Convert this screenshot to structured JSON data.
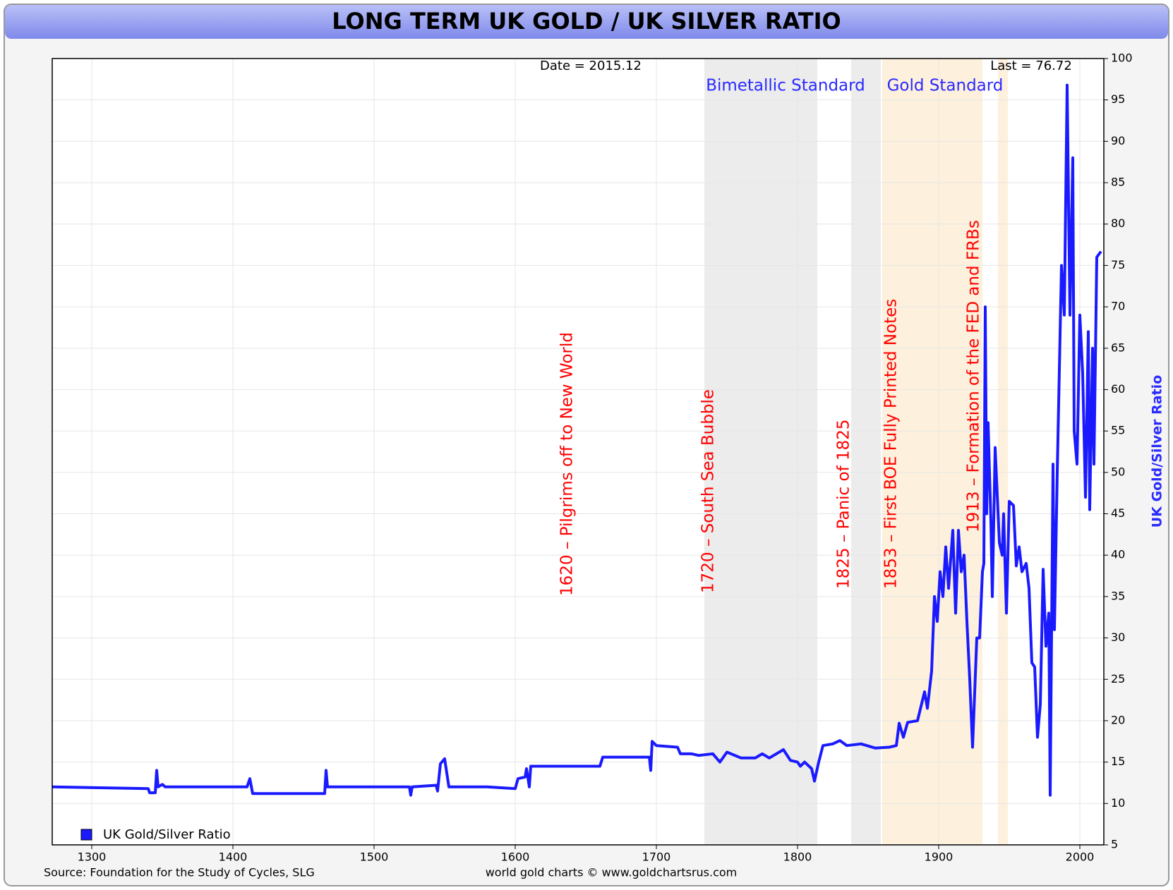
{
  "chart_data": {
    "type": "line",
    "title": "LONG TERM UK GOLD / UK SILVER RATIO",
    "date_label": "Date = 2015.12",
    "last_label": "Last = 76.72",
    "y_axis_label": "UK Gold/Silver Ratio",
    "source": "Source: Foundation for the Study of Cycles, SLG",
    "credit": "world gold charts © www.goldchartsrus.com",
    "band_labels": [
      "Bimetallic Standard",
      "Gold Standard"
    ],
    "bands": [
      {
        "start": 1734,
        "end": 1814,
        "color": "#ececec"
      },
      {
        "start": 1838,
        "end": 1859,
        "color": "#ececec"
      },
      {
        "start": 1860,
        "end": 1931,
        "color": "#fdf0dc"
      },
      {
        "start": 1942,
        "end": 1949,
        "color": "#fdf0dc"
      }
    ],
    "annotations": [
      "1620 – Pilgrims off to New World",
      "1720 – South Sea Bubble",
      "1825 – Panic of 1825",
      "1853 – First BOE Fully Printed Notes",
      "1913 – Formation of the FED and FRBs"
    ],
    "xlim": [
      1272,
      2017
    ],
    "xticks": [
      1300,
      1400,
      1500,
      1600,
      1700,
      1800,
      1900,
      2000
    ],
    "ylim": [
      5,
      100
    ],
    "yticks": [
      5,
      10,
      15,
      20,
      25,
      30,
      35,
      40,
      45,
      50,
      55,
      60,
      65,
      70,
      75,
      80,
      85,
      90,
      95,
      100
    ],
    "grid": true,
    "x": [
      1272,
      1340,
      1341,
      1345,
      1346,
      1347,
      1350,
      1352,
      1410,
      1412,
      1414,
      1465,
      1466,
      1467,
      1525,
      1526,
      1527,
      1544,
      1545,
      1547,
      1550,
      1553,
      1580,
      1600,
      1602,
      1607,
      1608,
      1610,
      1611,
      1660,
      1662,
      1695,
      1696,
      1697,
      1700,
      1715,
      1717,
      1725,
      1730,
      1740,
      1745,
      1750,
      1760,
      1770,
      1775,
      1780,
      1790,
      1795,
      1800,
      1802,
      1805,
      1810,
      1812,
      1815,
      1818,
      1825,
      1830,
      1835,
      1845,
      1855,
      1865,
      1870,
      1872,
      1875,
      1878,
      1885,
      1890,
      1892,
      1895,
      1897,
      1899,
      1901,
      1903,
      1905,
      1907,
      1910,
      1912,
      1914,
      1916,
      1918,
      1920,
      1922,
      1924,
      1927,
      1929,
      1931,
      1932,
      1933,
      1934,
      1935,
      1937,
      1938,
      1940,
      1943,
      1945,
      1946,
      1948,
      1950,
      1953,
      1955,
      1957,
      1959,
      1962,
      1964,
      1966,
      1968,
      1970,
      1972,
      1974,
      1976,
      1978,
      1979,
      1981,
      1982,
      1984,
      1987,
      1989,
      1991,
      1993,
      1995,
      1996,
      1998,
      2000,
      2002,
      2004,
      2006,
      2007,
      2009,
      2010,
      2012,
      2015
    ],
    "series": [
      {
        "name": "UK Gold/Silver Ratio",
        "color": "#1a1aff",
        "values": [
          12,
          11.8,
          11.3,
          11.3,
          14,
          12,
          12.3,
          12,
          12,
          13,
          11.2,
          11.2,
          14,
          12,
          12,
          11,
          12,
          12.2,
          11.5,
          14.8,
          15.4,
          12,
          12,
          11.8,
          13,
          13.2,
          14.2,
          12,
          14.5,
          14.5,
          15.6,
          15.6,
          14,
          17.5,
          17,
          16.8,
          16,
          16,
          15.8,
          16,
          15,
          16.2,
          15.5,
          15.5,
          16,
          15.5,
          16.5,
          15.2,
          15,
          14.5,
          15,
          14.2,
          12.7,
          15,
          17,
          17.2,
          17.6,
          17,
          17.2,
          16.7,
          16.8,
          17,
          19.7,
          18,
          19.8,
          20,
          23.5,
          21.5,
          26,
          35,
          32,
          38,
          35,
          41,
          36,
          43,
          33,
          43,
          38,
          40,
          32,
          25,
          16.8,
          30,
          30,
          38,
          39,
          70,
          45,
          56,
          44,
          35,
          53,
          41.5,
          40,
          45,
          33,
          46.5,
          46,
          38.7,
          41,
          38,
          39,
          36,
          27,
          26.5,
          18,
          22,
          38.3,
          29,
          33,
          11,
          51,
          31,
          50,
          75,
          69,
          96.8,
          69,
          88,
          55,
          51,
          69,
          62,
          47,
          67,
          45.5,
          65,
          51,
          76,
          76.7
        ]
      }
    ]
  }
}
